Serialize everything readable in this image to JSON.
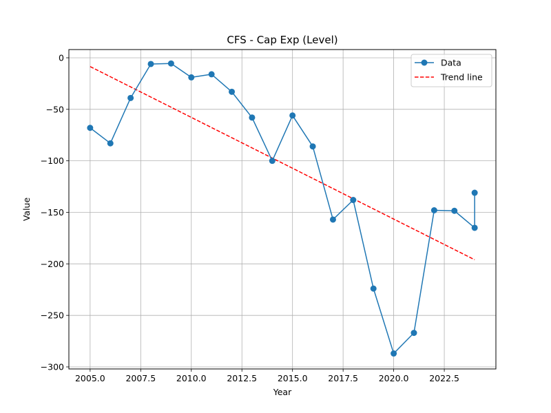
{
  "chart_data": {
    "type": "line",
    "title": "CFS - Cap Exp (Level)",
    "xlabel": "Year",
    "ylabel": "Value",
    "xlim": [
      2003.95,
      2025.05
    ],
    "ylim": [
      -302,
      8
    ],
    "x_ticks": [
      2005.0,
      2007.5,
      2010.0,
      2012.5,
      2015.0,
      2017.5,
      2020.0,
      2022.5
    ],
    "x_tick_labels": [
      "2005.0",
      "2007.5",
      "2010.0",
      "2012.5",
      "2015.0",
      "2017.5",
      "2020.0",
      "2022.5"
    ],
    "y_ticks": [
      0,
      -50,
      -100,
      -150,
      -200,
      -250,
      -300
    ],
    "y_tick_labels": [
      "0",
      "−50",
      "−100",
      "−150",
      "−200",
      "−250",
      "−300"
    ],
    "grid": true,
    "legend_position": "top-right",
    "series": [
      {
        "name": "Data",
        "style": "solid-line-with-circle-markers",
        "color": "#1f77b4",
        "x": [
          2005,
          2006,
          2007,
          2008,
          2009,
          2010,
          2011,
          2012,
          2013,
          2014,
          2015,
          2016,
          2017,
          2018,
          2019,
          2020,
          2021,
          2022,
          2023,
          2024,
          2024
        ],
        "y": [
          -68,
          -83,
          -39,
          -6,
          -5.5,
          -19,
          -16,
          -33,
          -58,
          -100,
          -56,
          -86,
          -157,
          -138,
          -224,
          -287,
          -267,
          -148,
          -148.5,
          -165,
          -131
        ]
      },
      {
        "name": "Trend line",
        "style": "dashed",
        "color": "#ff0000",
        "x": [
          2005,
          2024
        ],
        "y": [
          -8.5,
          -196
        ]
      }
    ]
  }
}
